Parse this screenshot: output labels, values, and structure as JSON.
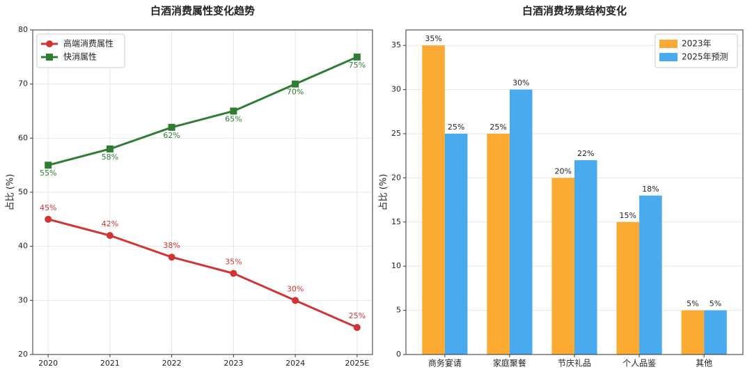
{
  "chart_data": [
    {
      "type": "line",
      "title": "白酒消费属性变化趋势",
      "ylabel": "占比 (%)",
      "categories": [
        "2020",
        "2021",
        "2022",
        "2023",
        "2024",
        "2025E"
      ],
      "series": [
        {
          "name": "高端消费属性",
          "color": "#d03434",
          "marker": "circle",
          "values": [
            45,
            42,
            38,
            35,
            30,
            25
          ],
          "value_labels": [
            "45%",
            "42%",
            "38%",
            "35%",
            "30%",
            "25%"
          ]
        },
        {
          "name": "快消属性",
          "color": "#2e7d32",
          "marker": "square",
          "values": [
            55,
            58,
            62,
            65,
            70,
            75
          ],
          "value_labels": [
            "55%",
            "58%",
            "62%",
            "65%",
            "70%",
            "75%"
          ]
        }
      ],
      "ylim": [
        20,
        80
      ],
      "yticks": [
        20,
        30,
        40,
        50,
        60,
        70,
        80
      ],
      "grid": true,
      "legend": "upper left"
    },
    {
      "type": "bar",
      "title": "白酒消费场景结构变化",
      "ylabel": "占比 (%)",
      "categories": [
        "商务宴请",
        "家庭聚餐",
        "节庆礼品",
        "个人品鉴",
        "其他"
      ],
      "series": [
        {
          "name": "2023年",
          "color": "#fbaa34",
          "values": [
            35,
            25,
            20,
            15,
            5
          ],
          "value_labels": [
            "35%",
            "25%",
            "20%",
            "15%",
            "5%"
          ]
        },
        {
          "name": "2025年预测",
          "color": "#4aaaee",
          "values": [
            25,
            30,
            22,
            18,
            5
          ],
          "value_labels": [
            "25%",
            "30%",
            "22%",
            "18%",
            "5%"
          ]
        }
      ],
      "ylim": [
        0,
        36.75
      ],
      "yticks": [
        0,
        5,
        10,
        15,
        20,
        25,
        30,
        35
      ],
      "grid": true,
      "legend": "upper right"
    }
  ]
}
